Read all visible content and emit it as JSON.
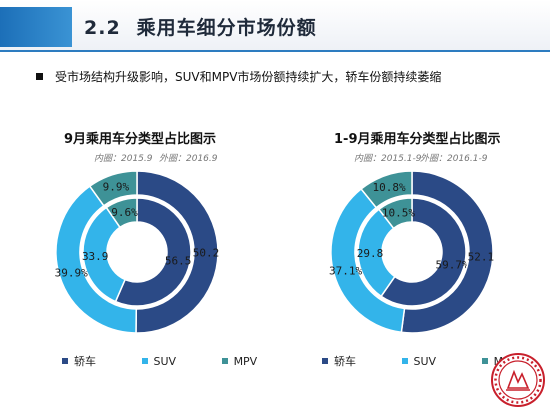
{
  "header": {
    "section_number": "2.2",
    "title": "乘用车细分市场份额"
  },
  "bullet": "受市场结构升级影响，SUV和MPV市场份额持续扩大，轿车份额持续萎缩",
  "colors": {
    "sedan": "#2b4a86",
    "suv": "#33b4ea",
    "mpv": "#3e9297"
  },
  "legend": [
    "轿车",
    "SUV",
    "MPV"
  ],
  "chart_data": [
    {
      "type": "pie",
      "title": "9月乘用车分类型占比图示",
      "subtitle_inner": "内圈：2015.9",
      "subtitle_outer": "外圈：2016.9",
      "categories": [
        "轿车",
        "SUV",
        "MPV"
      ],
      "series": [
        {
          "ring": "inner",
          "values": [
            56.5,
            33.9,
            9.6
          ],
          "labels": [
            "56.5",
            "33.9",
            "9.6%"
          ]
        },
        {
          "ring": "outer",
          "values": [
            50.2,
            39.9,
            9.9
          ],
          "labels": [
            "50.2",
            "39.9%",
            "9.9%"
          ]
        }
      ]
    },
    {
      "type": "pie",
      "title": "1-9月乘用车分类型占比图示",
      "subtitle_inner": "内圈：2015.1-9",
      "subtitle_outer": "外圈：2016.1-9",
      "categories": [
        "轿车",
        "SUV",
        "MPV"
      ],
      "series": [
        {
          "ring": "inner",
          "values": [
            59.7,
            29.8,
            10.5
          ],
          "labels": [
            "59.7%",
            "29.8",
            "10.5%"
          ]
        },
        {
          "ring": "outer",
          "values": [
            52.1,
            37.1,
            10.8
          ],
          "labels": [
            "52.1",
            "37.1%",
            "10.8%"
          ]
        }
      ]
    }
  ]
}
